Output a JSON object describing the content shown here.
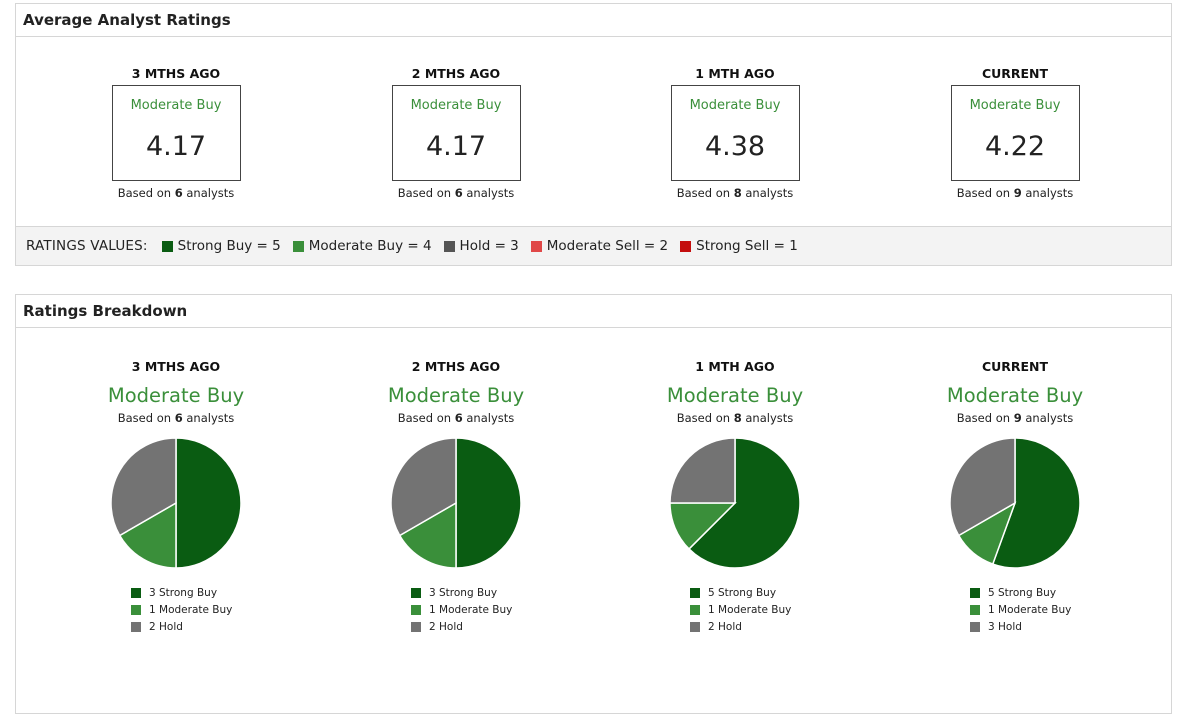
{
  "average_panel": {
    "title": "Average Analyst Ratings",
    "columns": [
      {
        "label": "3 MTHS AGO",
        "rating": "Moderate Buy",
        "score": "4.17",
        "based_prefix": "Based on ",
        "analysts": "6",
        "based_suffix": " analysts"
      },
      {
        "label": "2 MTHS AGO",
        "rating": "Moderate Buy",
        "score": "4.17",
        "based_prefix": "Based on ",
        "analysts": "6",
        "based_suffix": " analysts"
      },
      {
        "label": "1 MTH AGO",
        "rating": "Moderate Buy",
        "score": "4.38",
        "based_prefix": "Based on ",
        "analysts": "8",
        "based_suffix": " analysts"
      },
      {
        "label": "CURRENT",
        "rating": "Moderate Buy",
        "score": "4.22",
        "based_prefix": "Based on ",
        "analysts": "9",
        "based_suffix": " analysts"
      }
    ],
    "ratings_values": {
      "title": "RATINGS VALUES:",
      "items": [
        {
          "label": "Strong Buy = 5",
          "color": "#0a5c12"
        },
        {
          "label": "Moderate Buy = 4",
          "color": "#3a8f3a"
        },
        {
          "label": "Hold = 3",
          "color": "#555555"
        },
        {
          "label": "Moderate Sell = 2",
          "color": "#e04848"
        },
        {
          "label": "Strong Sell = 1",
          "color": "#c40e0e"
        }
      ]
    }
  },
  "breakdown_panel": {
    "title": "Ratings Breakdown",
    "columns": [
      {
        "label": "3 MTHS AGO",
        "rating": "Moderate Buy",
        "based_prefix": "Based on ",
        "analysts": "6",
        "based_suffix": " analysts",
        "legend": [
          "3 Strong Buy",
          "1 Moderate Buy",
          "2 Hold"
        ],
        "counts": [
          3,
          1,
          2
        ]
      },
      {
        "label": "2 MTHS AGO",
        "rating": "Moderate Buy",
        "based_prefix": "Based on ",
        "analysts": "6",
        "based_suffix": " analysts",
        "legend": [
          "3 Strong Buy",
          "1 Moderate Buy",
          "2 Hold"
        ],
        "counts": [
          3,
          1,
          2
        ]
      },
      {
        "label": "1 MTH AGO",
        "rating": "Moderate Buy",
        "based_prefix": "Based on ",
        "analysts": "8",
        "based_suffix": " analysts",
        "legend": [
          "5 Strong Buy",
          "1 Moderate Buy",
          "2 Hold"
        ],
        "counts": [
          5,
          1,
          2
        ]
      },
      {
        "label": "CURRENT",
        "rating": "Moderate Buy",
        "based_prefix": "Based on ",
        "analysts": "9",
        "based_suffix": " analysts",
        "legend": [
          "5 Strong Buy",
          "1 Moderate Buy",
          "3 Hold"
        ],
        "counts": [
          5,
          1,
          3
        ]
      }
    ],
    "slice_colors": [
      "#0a5c12",
      "#3a8f3a",
      "#737373"
    ]
  },
  "chart_data": [
    {
      "type": "pie",
      "categories": [
        "Strong Buy",
        "Moderate Buy",
        "Hold"
      ],
      "values": [
        3,
        1,
        2
      ]
    },
    {
      "type": "pie",
      "categories": [
        "Strong Buy",
        "Moderate Buy",
        "Hold"
      ],
      "values": [
        3,
        1,
        2
      ]
    },
    {
      "type": "pie",
      "categories": [
        "Strong Buy",
        "Moderate Buy",
        "Hold"
      ],
      "values": [
        5,
        1,
        2
      ]
    },
    {
      "type": "pie",
      "categories": [
        "Strong Buy",
        "Moderate Buy",
        "Hold"
      ],
      "values": [
        5,
        1,
        3
      ]
    }
  ]
}
